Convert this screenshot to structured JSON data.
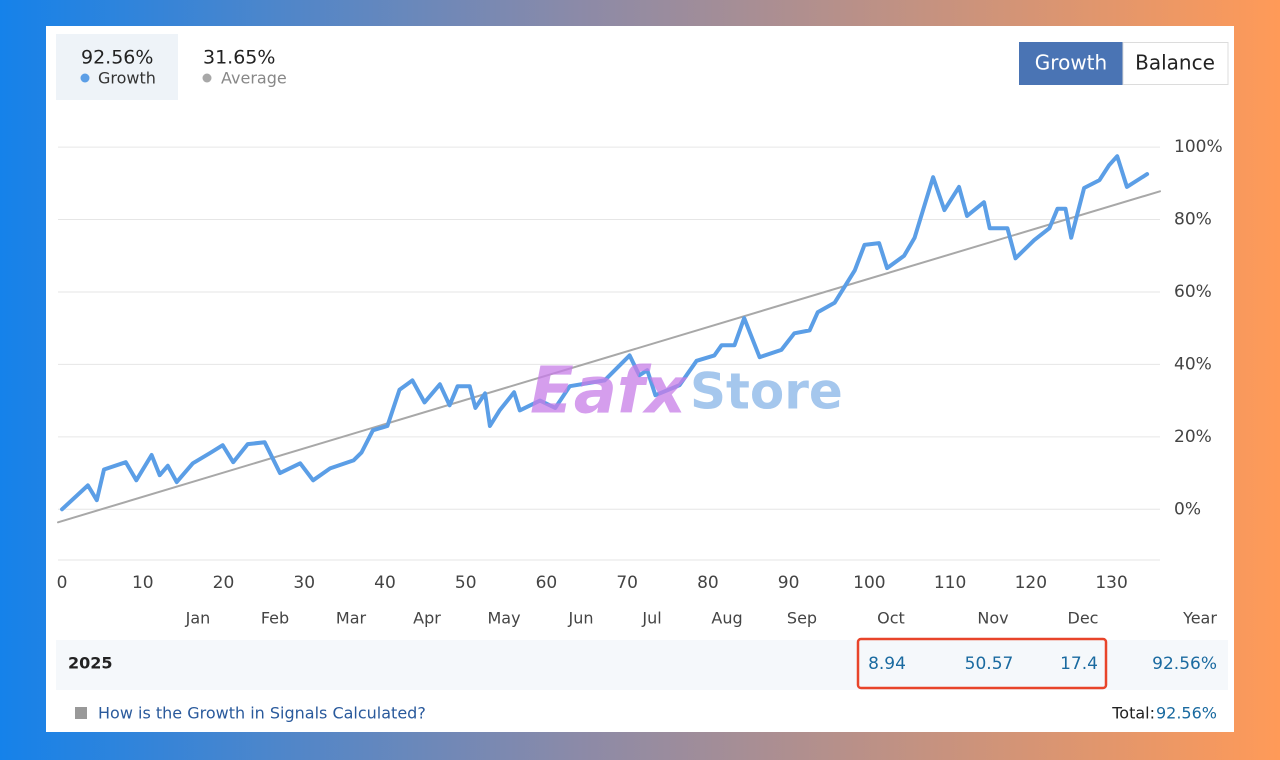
{
  "chart_data": {
    "type": "line",
    "series": [
      {
        "name": "Growth",
        "summary": "92.56%",
        "color": "#5b9ee6",
        "x": [
          0,
          3.2,
          4.3,
          5.2,
          7.9,
          9.2,
          11.1,
          12.1,
          13.1,
          14.2,
          16.2,
          18.3,
          19.9,
          21.2,
          23,
          25.1,
          27,
          29.5,
          31.1,
          33.2,
          36.1,
          37.1,
          38.5,
          40.3,
          41.8,
          43.4,
          44.9,
          46.8,
          48,
          49,
          50.5,
          51.2,
          52.4,
          53,
          54.2,
          56,
          56.7,
          59.2,
          61.1,
          62.9,
          67.2,
          70.3,
          71.5,
          72.5,
          73.5,
          76.5,
          78.6,
          80.8,
          81.7,
          83.3,
          84.5,
          86.4,
          89.1,
          90.7,
          92.6,
          93.6,
          95.7,
          98.2,
          99.4,
          101.2,
          102.2,
          104.3,
          105.6,
          107.9,
          109.3,
          111.1,
          112.1,
          114.2,
          114.9,
          117.1,
          118.1,
          120.4,
          122.3,
          123.3,
          124.3,
          125,
          126.6,
          128.5,
          129.7,
          130.7,
          131.9,
          134.4
        ],
        "values": [
          0,
          6.6,
          2.5,
          11,
          13,
          8,
          15,
          9.4,
          12,
          7.5,
          12.7,
          15.5,
          17.7,
          13,
          18,
          18.5,
          10,
          12.7,
          8,
          11.3,
          13.5,
          15.7,
          21.8,
          23,
          33,
          35.6,
          29.5,
          34.5,
          28.7,
          34,
          34,
          28,
          32,
          23,
          27.3,
          32.3,
          27.3,
          30,
          28,
          34,
          35.6,
          42.5,
          37,
          38.4,
          31.5,
          34.3,
          41,
          42.5,
          45.3,
          45.3,
          52.8,
          42,
          44,
          48.6,
          49.4,
          54.4,
          57,
          66,
          73,
          73.5,
          66.6,
          70,
          75,
          91.7,
          82.6,
          89,
          81,
          84.8,
          77.6,
          77.6,
          69.3,
          74.3,
          77.6,
          83,
          83,
          75,
          88.7,
          90.9,
          95,
          97.5,
          89,
          92.56
        ]
      },
      {
        "name": "Average",
        "summary": "31.65%",
        "color": "#a8a8a8",
        "x": [
          -0.5,
          136
        ],
        "values": [
          -3.6,
          87.8
        ]
      }
    ],
    "xlim": [
      -0.5,
      136
    ],
    "xticks": [
      0,
      10,
      20,
      30,
      40,
      50,
      60,
      70,
      80,
      90,
      100,
      110,
      120,
      130
    ],
    "ylim": [
      -14,
      105
    ],
    "yticks": [
      {
        "value": 0,
        "label": "0%"
      },
      {
        "value": 20,
        "label": "20%"
      },
      {
        "value": 40,
        "label": "40%"
      },
      {
        "value": 60,
        "label": "60%"
      },
      {
        "value": 80,
        "label": "80%"
      },
      {
        "value": 100,
        "label": "100%"
      }
    ],
    "grid": true
  },
  "buttons": [
    "Growth",
    "Balance"
  ],
  "watermark": [
    "Eafx",
    "Store"
  ],
  "table": {
    "columns": [
      "Jan",
      "Feb",
      "Mar",
      "Apr",
      "May",
      "Jun",
      "Jul",
      "Aug",
      "Sep",
      "Oct",
      "Nov",
      "Dec",
      "Year"
    ],
    "row": {
      "year": "2025",
      "cells": [
        null,
        null,
        null,
        null,
        null,
        null,
        null,
        null,
        null,
        8.94,
        50.57,
        17.4
      ],
      "total": "92.56%"
    }
  },
  "footer": {
    "link": "How is the Growth in Signals Calculated?",
    "total_label": "Total:",
    "total_value": "92.56%"
  }
}
